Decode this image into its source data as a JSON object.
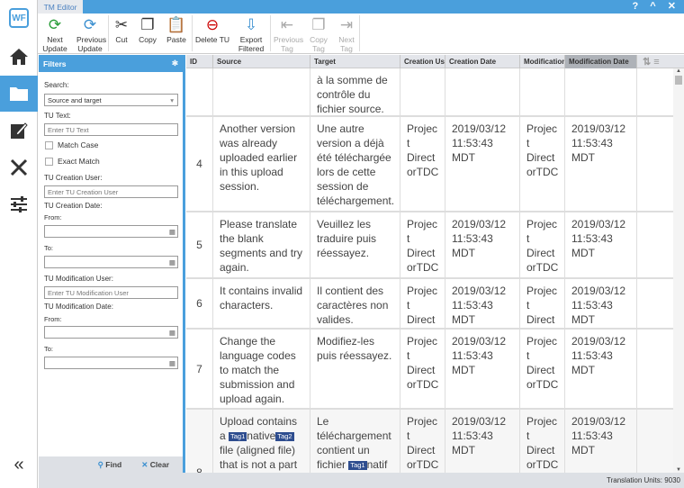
{
  "app": {
    "tab": "TM Editor",
    "logo": "WF",
    "window_buttons": [
      "?",
      "^",
      "x"
    ]
  },
  "nav": [
    {
      "icon": "home-icon"
    },
    {
      "icon": "folder-icon",
      "active": true
    },
    {
      "icon": "edit-icon"
    },
    {
      "icon": "tools-icon"
    },
    {
      "icon": "sliders-icon"
    },
    {
      "icon": "collapse-icon"
    }
  ],
  "toolbar": {
    "next_update": "Next Update",
    "previous_update": "Previous Update",
    "cut": "Cut",
    "copy": "Copy",
    "paste": "Paste",
    "delete_tu": "Delete TU",
    "export_filtered": "Export Filtered",
    "previous_tag": "Previous Tag",
    "copy_tag": "Copy Tag",
    "next_tag": "Next Tag"
  },
  "filters": {
    "title": "Filters",
    "search_label": "Search:",
    "search_value": "Source and target",
    "tu_text_label": "TU Text:",
    "tu_text_placeholder": "Enter TU Text",
    "match_case": "Match Case",
    "exact_match": "Exact Match",
    "creation_user_label": "TU Creation User:",
    "creation_user_placeholder": "Enter TU Creation User",
    "creation_date_label": "TU Creation Date:",
    "from": "From:",
    "to": "To:",
    "mod_user_label": "TU Modification User:",
    "mod_user_placeholder": "Enter TU Modification User",
    "mod_date_label": "TU Modification Date:",
    "find": "Find",
    "clear": "Clear"
  },
  "grid": {
    "columns": [
      "ID",
      "Source",
      "Target",
      "Creation Use",
      "Creation Date",
      "Modification",
      "Modification Date"
    ],
    "rows": [
      {
        "id": "",
        "source": "",
        "target": "à la somme de contrôle du fichier source.",
        "cuser": "",
        "cdate": "",
        "muser": "",
        "mdate": ""
      },
      {
        "id": "4",
        "source": "Another version was already uploaded earlier in this upload session.",
        "target": "Une autre version a déjà été téléchargée lors de cette session de téléchargement.",
        "cuser": "Project DirectorTDC",
        "cdate": "2019/03/12 11:53:43 MDT",
        "muser": "Project DirectorTDC",
        "mdate": "2019/03/12 11:53:43 MDT"
      },
      {
        "id": "5",
        "source": "Please translate the blank segments and try again.",
        "target": "Veuillez les traduire puis réessayez.",
        "cuser": "Project DirectorTDC",
        "cdate": "2019/03/12 11:53:43 MDT",
        "muser": "Project DirectorTDC",
        "mdate": "2019/03/12 11:53:43 MDT"
      },
      {
        "id": "6",
        "source": "It contains invalid characters.",
        "target": "Il contient des caractères non valides.",
        "cuser": "Project DirectorTDC",
        "cdate": "2019/03/12 11:53:43 MDT",
        "muser": "Project DirectorTDC",
        "mdate": "2019/03/12 11:53:43 MDT"
      },
      {
        "id": "7",
        "source": "Change the language codes to match the submission and upload again.",
        "target": "Modifiez-les puis réessayez.",
        "cuser": "Project DirectorTDC",
        "cdate": "2019/03/12 11:53:43 MDT",
        "muser": "Project DirectorTDC",
        "mdate": "2019/03/12 11:53:43 MDT"
      },
      {
        "id": "8",
        "source_parts": [
          "Upload contains a ",
          "Tag1",
          "native",
          "Tag2",
          " file (aligned file) that is not a part of"
        ],
        "target_parts": [
          "Le téléchargement contient un fichier ",
          "Tag1",
          "natif"
        ],
        "cuser": "Project DirectorTDC",
        "cdate": "2019/03/12 11:53:43 MDT",
        "muser": "Project DirectorTDC",
        "mdate": "2019/03/12 11:53:43 MDT"
      }
    ]
  },
  "status": {
    "units": "Translation Units: 9030"
  },
  "colors": {
    "accent": "#4a9fdc",
    "tag": "#2e4d8f"
  }
}
